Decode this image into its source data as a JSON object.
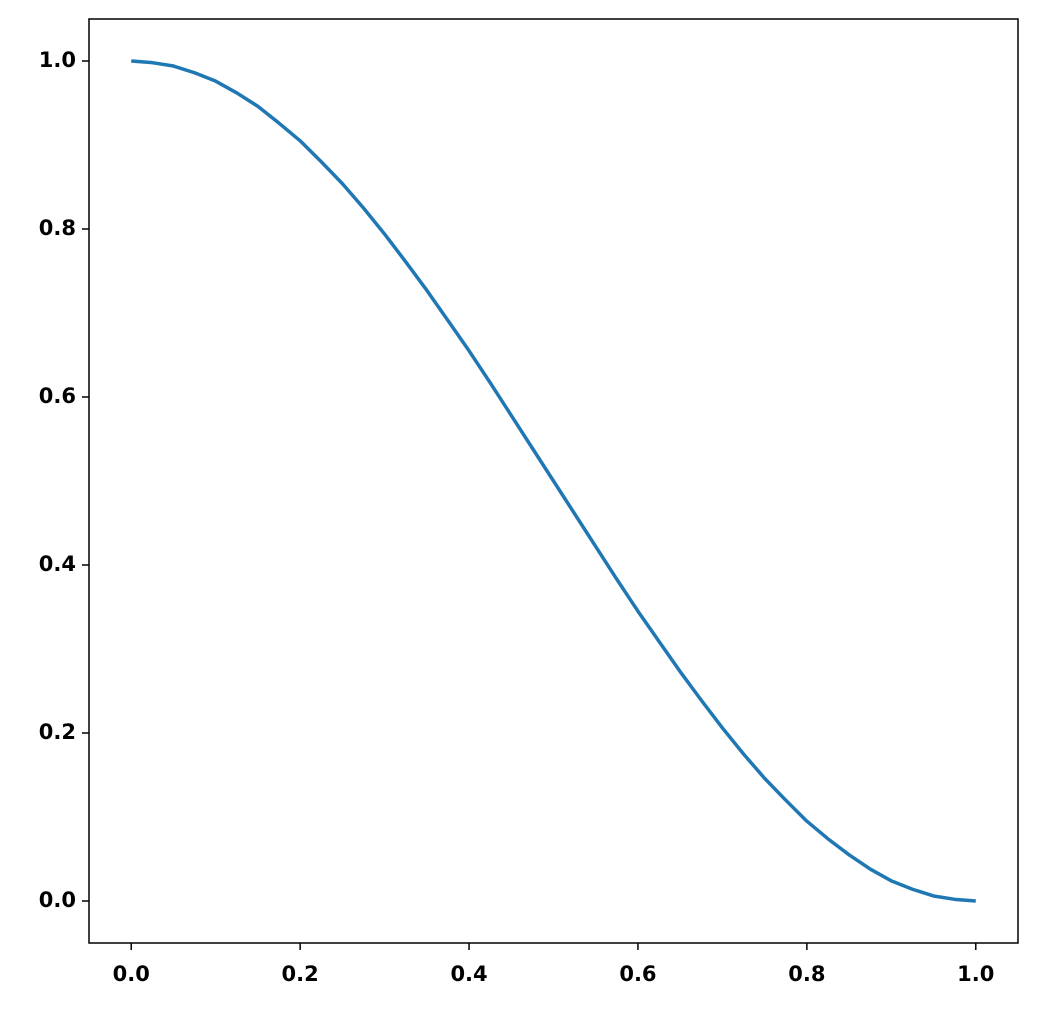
{
  "chart_data": {
    "type": "line",
    "x": [
      0,
      0.025,
      0.05,
      0.075,
      0.1,
      0.125,
      0.15,
      0.175,
      0.2,
      0.225,
      0.25,
      0.275,
      0.3,
      0.325,
      0.35,
      0.375,
      0.4,
      0.425,
      0.45,
      0.475,
      0.5,
      0.525,
      0.55,
      0.575,
      0.6,
      0.625,
      0.65,
      0.675,
      0.7,
      0.725,
      0.75,
      0.775,
      0.8,
      0.825,
      0.85,
      0.875,
      0.9,
      0.925,
      0.95,
      0.975,
      1
    ],
    "series": [
      {
        "color": "#1f77b4",
        "values": [
          1,
          0.998,
          0.994,
          0.986,
          0.976,
          0.962,
          0.946,
          0.926,
          0.905,
          0.88,
          0.854,
          0.825,
          0.794,
          0.761,
          0.727,
          0.691,
          0.655,
          0.617,
          0.578,
          0.539,
          0.5,
          0.461,
          0.422,
          0.383,
          0.345,
          0.309,
          0.273,
          0.239,
          0.206,
          0.175,
          0.146,
          0.12,
          0.095,
          0.074,
          0.055,
          0.038,
          0.024,
          0.014,
          0.006,
          0.002,
          0
        ]
      }
    ],
    "xlim": [
      -0.05,
      1.05
    ],
    "ylim": [
      -0.05,
      1.05
    ],
    "xticks": [
      {
        "value": 0,
        "label": "0.0"
      },
      0.2,
      0.4,
      0.6,
      0.8,
      {
        "value": 1,
        "label": "1.0"
      }
    ],
    "yticks": [
      {
        "value": 0,
        "label": "0.0"
      },
      0.2,
      0.4,
      0.6,
      0.8,
      {
        "value": 1,
        "label": "1.0"
      }
    ],
    "grid": false
  }
}
